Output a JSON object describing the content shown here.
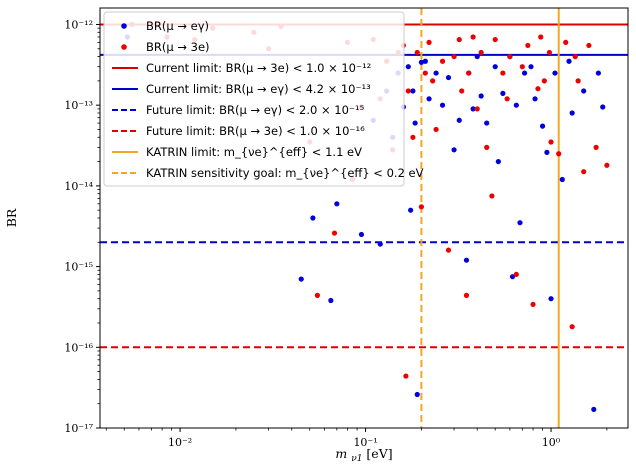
{
  "chart_data": {
    "type": "scatter",
    "title": "",
    "xlabel": "m_{ν1} [eV]",
    "xlabel_main": "m",
    "xlabel_sub": "ν1",
    "xlabel_unit": "[eV]",
    "ylabel": "BR",
    "x_scale": "log",
    "y_scale": "log",
    "xlim": [
      0.0037,
      2.6
    ],
    "ylim": [
      1e-17,
      1.6e-12
    ],
    "grid": false,
    "legend_position": "top-left",
    "x_ticks": [
      {
        "value": 0.01,
        "label": "10⁻²"
      },
      {
        "value": 0.1,
        "label": "10⁻¹"
      },
      {
        "value": 1,
        "label": "10⁰"
      }
    ],
    "y_ticks": [
      {
        "value": 1e-17,
        "label": "10⁻¹⁷"
      },
      {
        "value": 1e-16,
        "label": "10⁻¹⁶"
      },
      {
        "value": 1e-15,
        "label": "10⁻¹⁵"
      },
      {
        "value": 1e-14,
        "label": "10⁻¹⁴"
      },
      {
        "value": 1e-13,
        "label": "10⁻¹³"
      },
      {
        "value": 1e-12,
        "label": "10⁻¹²"
      }
    ],
    "series": [
      {
        "name": "BR(μ → eγ)",
        "color": "#0000dd",
        "points": [
          [
            0.0052,
            7e-13
          ],
          [
            0.045,
            7e-16
          ],
          [
            0.052,
            4e-15
          ],
          [
            0.065,
            3.8e-16
          ],
          [
            0.07,
            6e-15
          ],
          [
            0.095,
            2.5e-15
          ],
          [
            0.11,
            6.5e-14
          ],
          [
            0.12,
            1.9e-15
          ],
          [
            0.13,
            1.5e-13
          ],
          [
            0.14,
            4e-14
          ],
          [
            0.15,
            2.5e-13
          ],
          [
            0.16,
            9.5e-14
          ],
          [
            0.17,
            3e-13
          ],
          [
            0.175,
            5e-15
          ],
          [
            0.18,
            1.5e-13
          ],
          [
            0.185,
            6e-14
          ],
          [
            0.19,
            2.6e-17
          ],
          [
            0.2,
            3.4e-13
          ],
          [
            0.21,
            3.5e-13
          ],
          [
            0.22,
            1.2e-13
          ],
          [
            0.24,
            2.5e-13
          ],
          [
            0.26,
            1e-13
          ],
          [
            0.28,
            2.2e-13
          ],
          [
            0.3,
            2.8e-14
          ],
          [
            0.32,
            6.5e-14
          ],
          [
            0.35,
            1.2e-15
          ],
          [
            0.36,
            2.5e-13
          ],
          [
            0.38,
            9e-14
          ],
          [
            0.4,
            4e-13
          ],
          [
            0.42,
            1.3e-13
          ],
          [
            0.45,
            6e-14
          ],
          [
            0.5,
            3e-13
          ],
          [
            0.52,
            2e-14
          ],
          [
            0.55,
            1.4e-13
          ],
          [
            0.6,
            4e-13
          ],
          [
            0.62,
            7.5e-16
          ],
          [
            0.65,
            1e-13
          ],
          [
            0.68,
            3.5e-15
          ],
          [
            0.72,
            2.5e-13
          ],
          [
            0.78,
            3e-13
          ],
          [
            0.82,
            1.2e-13
          ],
          [
            0.9,
            5.5e-14
          ],
          [
            0.95,
            2.6e-14
          ],
          [
            1.0,
            4e-16
          ],
          [
            1.05,
            2.5e-13
          ],
          [
            1.15,
            1.2e-14
          ],
          [
            1.25,
            3.5e-13
          ],
          [
            1.3,
            8e-14
          ],
          [
            1.5,
            1.5e-13
          ],
          [
            1.7,
            1.7e-17
          ],
          [
            1.8,
            2.5e-13
          ],
          [
            1.9,
            9.5e-14
          ]
        ]
      },
      {
        "name": "BR(μ → 3e)",
        "color": "#ee0000",
        "points": [
          [
            0.0055,
            1e-12
          ],
          [
            0.0085,
            7e-13
          ],
          [
            0.012,
            6.5e-13
          ],
          [
            0.015,
            9e-13
          ],
          [
            0.025,
            8e-13
          ],
          [
            0.03,
            5e-13
          ],
          [
            0.035,
            9.5e-13
          ],
          [
            0.05,
            3.5e-14
          ],
          [
            0.055,
            4.4e-16
          ],
          [
            0.068,
            2.6e-15
          ],
          [
            0.08,
            6e-13
          ],
          [
            0.085,
            1.2e-14
          ],
          [
            0.095,
            9.5e-14
          ],
          [
            0.11,
            6.5e-13
          ],
          [
            0.12,
            1.2e-13
          ],
          [
            0.13,
            3.5e-13
          ],
          [
            0.14,
            2.8e-14
          ],
          [
            0.15,
            4.5e-13
          ],
          [
            0.16,
            5.5e-13
          ],
          [
            0.165,
            4.4e-17
          ],
          [
            0.17,
            1.5e-13
          ],
          [
            0.18,
            4e-14
          ],
          [
            0.19,
            4.5e-13
          ],
          [
            0.2,
            5.5e-15
          ],
          [
            0.21,
            2.5e-13
          ],
          [
            0.22,
            6e-13
          ],
          [
            0.23,
            2e-13
          ],
          [
            0.24,
            5e-14
          ],
          [
            0.26,
            3.5e-13
          ],
          [
            0.28,
            1.6e-15
          ],
          [
            0.3,
            4e-13
          ],
          [
            0.32,
            6.5e-13
          ],
          [
            0.33,
            1.5e-13
          ],
          [
            0.35,
            4.4e-16
          ],
          [
            0.36,
            2.5e-13
          ],
          [
            0.38,
            7e-13
          ],
          [
            0.4,
            9e-14
          ],
          [
            0.42,
            4.5e-13
          ],
          [
            0.45,
            3e-14
          ],
          [
            0.48,
            7.5e-15
          ],
          [
            0.5,
            6.5e-13
          ],
          [
            0.55,
            2.5e-13
          ],
          [
            0.58,
            1.2e-13
          ],
          [
            0.6,
            4e-13
          ],
          [
            0.65,
            8e-16
          ],
          [
            0.7,
            3e-13
          ],
          [
            0.75,
            5.5e-13
          ],
          [
            0.8,
            3.4e-16
          ],
          [
            0.85,
            1.6e-13
          ],
          [
            0.88,
            7e-13
          ],
          [
            0.92,
            2e-13
          ],
          [
            0.98,
            4.5e-13
          ],
          [
            1.0,
            3.5e-14
          ],
          [
            1.1,
            2.5e-14
          ],
          [
            1.2,
            6e-13
          ],
          [
            1.3,
            1.8e-16
          ],
          [
            1.35,
            4e-13
          ],
          [
            1.4,
            2e-13
          ],
          [
            1.5,
            1.5e-14
          ],
          [
            1.6,
            5.5e-13
          ],
          [
            1.75,
            3e-14
          ],
          [
            2.0,
            1.8e-14
          ]
        ]
      }
    ],
    "reference_lines": [
      {
        "name": "Current limit: BR(μ → 3e) < 1.0 × 10⁻¹²",
        "orientation": "horizontal",
        "value": 1e-12,
        "color": "#dd0000",
        "style": "solid"
      },
      {
        "name": "Current limit: BR(μ → eγ) < 4.2 × 10⁻¹³",
        "orientation": "horizontal",
        "value": 4.2e-13,
        "color": "#0000cc",
        "style": "solid"
      },
      {
        "name": "Future limit: BR(μ → eγ) < 2.0 × 10⁻¹⁵",
        "orientation": "horizontal",
        "value": 2e-15,
        "color": "#0000cc",
        "style": "dashed"
      },
      {
        "name": "Future limit: BR(μ → 3e) < 1.0 × 10⁻¹⁶",
        "orientation": "horizontal",
        "value": 1e-16,
        "color": "#dd0000",
        "style": "dashed"
      },
      {
        "name": "KATRIN limit: m_{νe}^{eff} < 1.1 eV",
        "orientation": "vertical",
        "value": 1.1,
        "color": "#f5a623",
        "style": "solid"
      },
      {
        "name": "KATRIN sensitivity goal: m_{νe}^{eff} < 0.2 eV",
        "orientation": "vertical",
        "value": 0.2,
        "color": "#f5a623",
        "style": "dashed"
      }
    ]
  }
}
